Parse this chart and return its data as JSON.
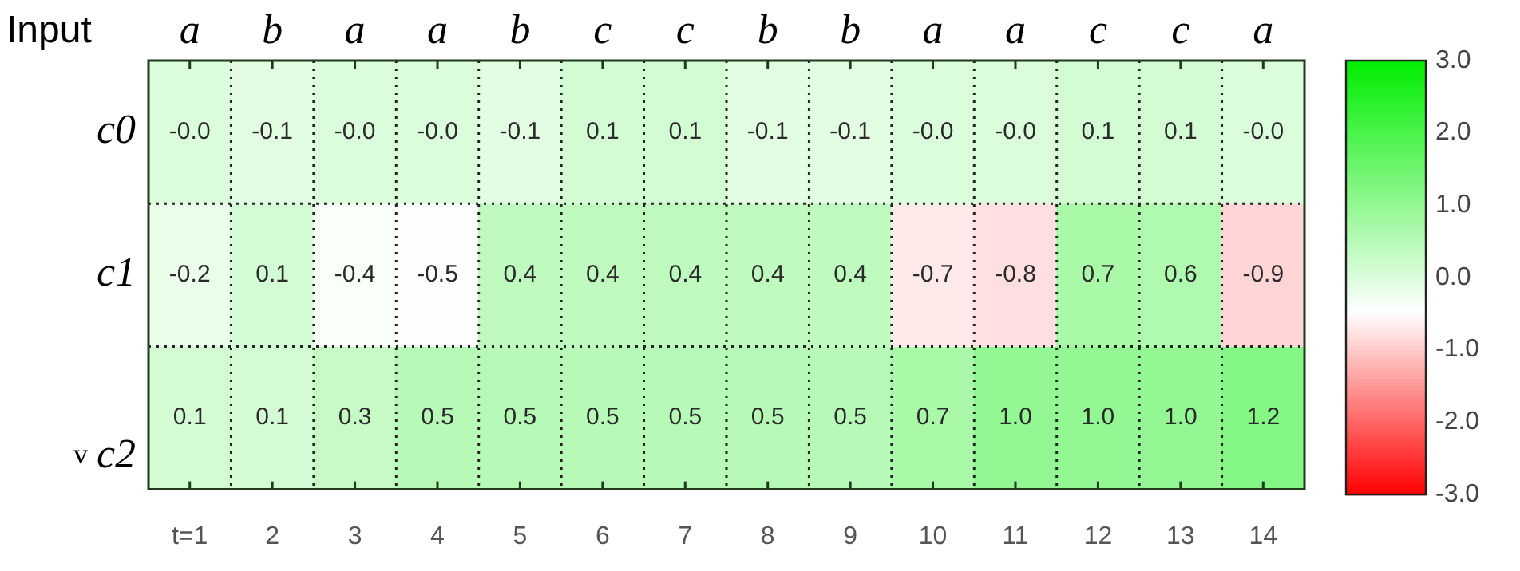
{
  "chart_data": {
    "type": "heatmap",
    "categories": [
      "t=1",
      "2",
      "3",
      "4",
      "5",
      "6",
      "7",
      "8",
      "9",
      "10",
      "11",
      "12",
      "13",
      "14"
    ],
    "y_categories": [
      "c0",
      "c1",
      "c2"
    ],
    "cells": [
      [
        0,
        -0.1,
        0,
        0,
        -0.1,
        0.1,
        0.1,
        -0.1,
        -0.1,
        0,
        0,
        0.1,
        0.1,
        0
      ],
      [
        -0.2,
        0.1,
        -0.4,
        -0.5,
        0.4,
        0.4,
        0.4,
        0.4,
        0.4,
        -0.7,
        -0.8,
        0.7,
        0.6,
        -0.9
      ],
      [
        0.1,
        0.1,
        0.3,
        0.5,
        0.5,
        0.5,
        0.5,
        0.5,
        0.5,
        0.7,
        1.0,
        1.0,
        1.0,
        1.2
      ]
    ],
    "cell_labels": [
      [
        "-0.0",
        "-0.1",
        "-0.0",
        "-0.0",
        "-0.1",
        "0.1",
        "0.1",
        "-0.1",
        "-0.1",
        "-0.0",
        "-0.0",
        "0.1",
        "0.1",
        "-0.0"
      ],
      [
        "-0.2",
        "0.1",
        "-0.4",
        "-0.5",
        "0.4",
        "0.4",
        "0.4",
        "0.4",
        "0.4",
        "-0.7",
        "-0.8",
        "0.7",
        "0.6",
        "-0.9"
      ],
      [
        "0.1",
        "0.1",
        "0.3",
        "0.5",
        "0.5",
        "0.5",
        "0.5",
        "0.5",
        "0.5",
        "0.7",
        "1.0",
        "1.0",
        "1.0",
        "1.2"
      ]
    ],
    "clim": [
      -3,
      3
    ],
    "cticks": [
      {
        "value": 3,
        "label": "3.0"
      },
      {
        "value": 2,
        "label": "2.0"
      },
      {
        "value": 1,
        "label": "1.0"
      },
      {
        "value": 0,
        "label": "0.0"
      },
      {
        "value": -1,
        "label": "-1.0"
      },
      {
        "value": -2,
        "label": "-2.0"
      },
      {
        "value": -3,
        "label": "-3.0"
      }
    ],
    "grid": true,
    "annotations": [
      "Input",
      "a",
      "b",
      "a",
      "a",
      "b",
      "c",
      "c",
      "b",
      "b",
      "a",
      "a",
      "c",
      "c",
      "a",
      "v"
    ]
  }
}
